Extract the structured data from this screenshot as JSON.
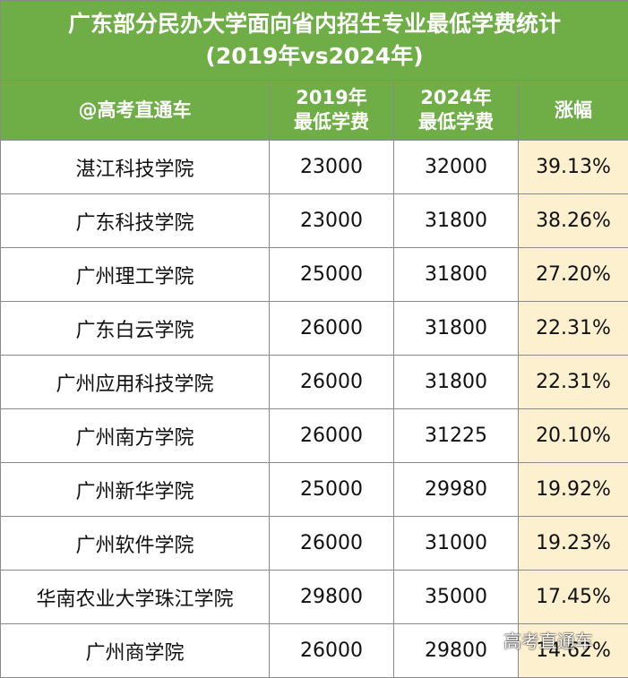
{
  "title": {
    "line1": "广东部分民办大学面向省内招生专业最低学费统计",
    "line2": "(2019年vs2024年)"
  },
  "header": {
    "source": "@高考直通车",
    "col2019_line1": "2019年",
    "col2019_line2": "最低学费",
    "col2024_line1": "2024年",
    "col2024_line2": "最低学费",
    "increase": "涨幅"
  },
  "rows": [
    {
      "school": "湛江科技学院",
      "fee2019": "23000",
      "fee2024": "32000",
      "increase": "39.13%"
    },
    {
      "school": "广东科技学院",
      "fee2019": "23000",
      "fee2024": "31800",
      "increase": "38.26%"
    },
    {
      "school": "广州理工学院",
      "fee2019": "25000",
      "fee2024": "31800",
      "increase": "27.20%"
    },
    {
      "school": "广东白云学院",
      "fee2019": "26000",
      "fee2024": "31800",
      "increase": "22.31%"
    },
    {
      "school": "广州应用科技学院",
      "fee2019": "26000",
      "fee2024": "31800",
      "increase": "22.31%"
    },
    {
      "school": "广州南方学院",
      "fee2019": "26000",
      "fee2024": "31225",
      "increase": "20.10%"
    },
    {
      "school": "广州新华学院",
      "fee2019": "25000",
      "fee2024": "29980",
      "increase": "19.92%"
    },
    {
      "school": "广州软件学院",
      "fee2019": "26000",
      "fee2024": "31000",
      "increase": "19.23%"
    },
    {
      "school": "华南农业大学珠江学院",
      "fee2019": "29800",
      "fee2024": "35000",
      "increase": "17.45%"
    },
    {
      "school": "广州商学院",
      "fee2019": "26000",
      "fee2024": "29800",
      "increase": "14.62%"
    }
  ],
  "watermark": "高考直通车",
  "colors": {
    "header_green": "#6fad47",
    "increase_highlight": "#fdf0cf"
  }
}
